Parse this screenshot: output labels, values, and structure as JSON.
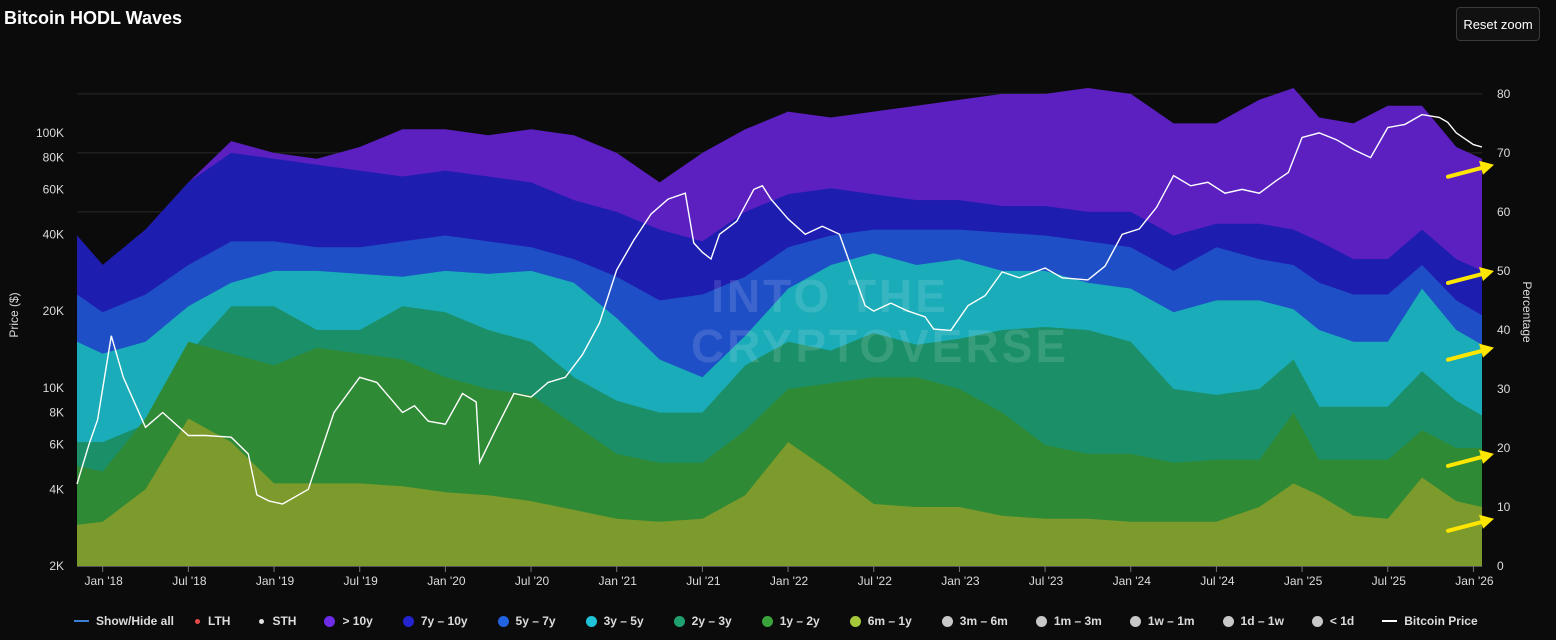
{
  "header": {
    "title": "Bitcoin HODL Waves",
    "reset_label": "Reset zoom"
  },
  "watermark": {
    "line1": "INTO THE",
    "line2": "CRYPTOVERSE"
  },
  "legend": [
    {
      "label": "Show/Hide all",
      "symbol": "line",
      "color": "#3a7fd6"
    },
    {
      "label": "LTH",
      "symbol": "small-dot",
      "color": "#e64a4a"
    },
    {
      "label": "STH",
      "symbol": "small-dot",
      "color": "#e0e0e0"
    },
    {
      "label": "> 10y",
      "symbol": "dot",
      "color": "#6c2ce8"
    },
    {
      "label": "7y – 10y",
      "symbol": "dot",
      "color": "#2323d0"
    },
    {
      "label": "5y – 7y",
      "symbol": "dot",
      "color": "#2263e0"
    },
    {
      "label": "3y – 5y",
      "symbol": "dot",
      "color": "#20c4d8"
    },
    {
      "label": "2y – 3y",
      "symbol": "dot",
      "color": "#1fa06e"
    },
    {
      "label": "1y – 2y",
      "symbol": "dot",
      "color": "#3aa33c"
    },
    {
      "label": "6m – 1y",
      "symbol": "dot",
      "color": "#a5c93a"
    },
    {
      "label": "3m – 6m",
      "symbol": "dot",
      "color": "#c8c8c8"
    },
    {
      "label": "1m – 3m",
      "symbol": "dot",
      "color": "#c8c8c8"
    },
    {
      "label": "1w – 1m",
      "symbol": "dot",
      "color": "#c8c8c8"
    },
    {
      "label": "1d – 1w",
      "symbol": "dot",
      "color": "#c8c8c8"
    },
    {
      "label": "< 1d",
      "symbol": "dot",
      "color": "#c8c8c8"
    },
    {
      "label": "Bitcoin Price",
      "symbol": "line",
      "color": "#ffffff"
    }
  ],
  "chart_data": {
    "type": "area",
    "title": "Bitcoin HODL Waves",
    "ylabel_left": "Price ($)",
    "ylabel_right": "Percentage",
    "y_left_scale": "log",
    "y_left_range": [
      2000,
      150000
    ],
    "y_left_ticks": [
      {
        "v": 2000,
        "label": "2K"
      },
      {
        "v": 4000,
        "label": "4K"
      },
      {
        "v": 6000,
        "label": "6K"
      },
      {
        "v": 8000,
        "label": "8K"
      },
      {
        "v": 10000,
        "label": "10K"
      },
      {
        "v": 20000,
        "label": "20K"
      },
      {
        "v": 40000,
        "label": "40K"
      },
      {
        "v": 60000,
        "label": "60K"
      },
      {
        "v": 80000,
        "label": "80K"
      },
      {
        "v": 100000,
        "label": "100K"
      }
    ],
    "y_right_range": [
      0,
      81
    ],
    "y_right_ticks": [
      0,
      10,
      20,
      30,
      40,
      50,
      60,
      70,
      80
    ],
    "x_range": [
      2017.85,
      2026.05
    ],
    "x_ticks": [
      {
        "t": 2018.0,
        "label": "Jan '18"
      },
      {
        "t": 2018.5,
        "label": "Jul '18"
      },
      {
        "t": 2019.0,
        "label": "Jan '19"
      },
      {
        "t": 2019.5,
        "label": "Jul '19"
      },
      {
        "t": 2020.0,
        "label": "Jan '20"
      },
      {
        "t": 2020.5,
        "label": "Jul '20"
      },
      {
        "t": 2021.0,
        "label": "Jan '21"
      },
      {
        "t": 2021.5,
        "label": "Jul '21"
      },
      {
        "t": 2022.0,
        "label": "Jan '22"
      },
      {
        "t": 2022.5,
        "label": "Jul '22"
      },
      {
        "t": 2023.0,
        "label": "Jan '23"
      },
      {
        "t": 2023.5,
        "label": "Jul '23"
      },
      {
        "t": 2024.0,
        "label": "Jan '24"
      },
      {
        "t": 2024.5,
        "label": "Jul '24"
      },
      {
        "t": 2025.0,
        "label": "Jan '25"
      },
      {
        "t": 2025.5,
        "label": "Jul '25"
      },
      {
        "t": 2026.0,
        "label": "Jan '26"
      }
    ],
    "t": [
      2017.85,
      2018.0,
      2018.25,
      2018.5,
      2018.75,
      2019.0,
      2019.25,
      2019.5,
      2019.75,
      2020.0,
      2020.25,
      2020.5,
      2020.75,
      2021.0,
      2021.25,
      2021.5,
      2021.75,
      2022.0,
      2022.25,
      2022.5,
      2022.75,
      2023.0,
      2023.25,
      2023.5,
      2023.75,
      2024.0,
      2024.25,
      2024.5,
      2024.75,
      2024.95,
      2025.1,
      2025.3,
      2025.5,
      2025.7,
      2025.9,
      2026.05
    ],
    "series": [
      {
        "name": "6m – 1y",
        "color": "#7d9a2c",
        "cumulative_top": [
          7,
          7.5,
          13,
          25,
          21,
          14,
          14,
          14,
          13.5,
          12.5,
          12,
          11,
          9.5,
          8,
          7.5,
          8,
          12,
          21,
          16,
          10.5,
          10,
          10,
          8.5,
          8,
          8,
          7.5,
          7.5,
          7.5,
          10,
          14,
          12,
          8.5,
          8,
          15,
          11,
          10
        ]
      },
      {
        "name": "1y – 2y",
        "color": "#2f8a35",
        "cumulative_top": [
          17,
          16,
          25,
          38,
          36,
          34,
          37,
          36,
          35,
          32,
          30,
          29,
          24,
          19,
          17.5,
          17.5,
          23,
          30,
          31,
          32,
          32,
          30,
          26,
          20.5,
          19,
          19,
          17.5,
          18,
          18,
          26,
          18,
          18,
          18,
          23,
          20,
          20
        ]
      },
      {
        "name": "2y – 3y",
        "color": "#1b8f68",
        "cumulative_top": [
          21,
          21,
          24,
          36,
          44,
          44,
          40,
          40,
          44,
          43,
          40,
          38,
          32,
          28,
          26,
          26,
          34,
          38,
          36.5,
          39.5,
          37.5,
          38.5,
          40,
          40.5,
          40,
          38,
          30,
          29,
          30,
          35,
          27,
          27,
          27,
          33,
          28,
          25.5
        ]
      },
      {
        "name": "3y – 5y",
        "color": "#1aacb8",
        "cumulative_top": [
          38,
          36,
          38,
          44,
          48,
          50,
          50,
          49.5,
          49,
          50,
          49.5,
          50,
          48,
          42,
          35,
          32,
          39,
          47,
          51,
          53,
          51,
          52,
          50,
          50,
          48,
          47,
          43,
          45,
          45,
          43.5,
          40,
          38,
          38,
          47,
          40,
          37.5
        ]
      },
      {
        "name": "5y – 7y",
        "color": "#1f4fc6",
        "cumulative_top": [
          46,
          43,
          46,
          51,
          55,
          55,
          54,
          54,
          55,
          56,
          55,
          54,
          52,
          49,
          45,
          46,
          49,
          54,
          56,
          57,
          57,
          57,
          56.5,
          56,
          55,
          54,
          50,
          54,
          52,
          51,
          48,
          46,
          46,
          51,
          45,
          42.5
        ]
      },
      {
        "name": "7y – 10y",
        "color": "#1d1db0",
        "cumulative_top": [
          56,
          51,
          57,
          65,
          70,
          69,
          68,
          67,
          66,
          67,
          66,
          65,
          62,
          60,
          57,
          55,
          60,
          63,
          64,
          63,
          62,
          62,
          61,
          61,
          60,
          60,
          56,
          58,
          58,
          57,
          55,
          52,
          52,
          57,
          52,
          50
        ]
      },
      {
        "name": "> 10y",
        "color": "#5c1fc0",
        "cumulative_top": [
          56,
          51,
          57,
          65,
          72,
          70,
          69,
          71,
          74,
          74,
          73,
          74,
          73,
          70,
          65,
          70,
          74,
          77,
          76,
          77,
          78,
          79,
          80,
          80,
          81,
          80,
          75,
          75,
          79,
          81,
          76,
          75,
          78,
          78,
          71,
          69
        ]
      }
    ],
    "price_series": {
      "name": "Bitcoin Price",
      "color": "#ffffff",
      "t": [
        2017.85,
        2017.92,
        2017.97,
        2018.05,
        2018.12,
        2018.25,
        2018.35,
        2018.5,
        2018.6,
        2018.75,
        2018.85,
        2018.9,
        2018.97,
        2019.05,
        2019.2,
        2019.35,
        2019.5,
        2019.6,
        2019.75,
        2019.82,
        2019.9,
        2020.0,
        2020.1,
        2020.18,
        2020.2,
        2020.3,
        2020.4,
        2020.5,
        2020.6,
        2020.7,
        2020.8,
        2020.9,
        2021.0,
        2021.1,
        2021.2,
        2021.3,
        2021.4,
        2021.45,
        2021.5,
        2021.55,
        2021.6,
        2021.7,
        2021.8,
        2021.85,
        2021.9,
        2022.0,
        2022.1,
        2022.2,
        2022.3,
        2022.45,
        2022.5,
        2022.6,
        2022.7,
        2022.8,
        2022.85,
        2022.95,
        2023.05,
        2023.15,
        2023.25,
        2023.35,
        2023.5,
        2023.6,
        2023.75,
        2023.85,
        2023.95,
        2024.05,
        2024.15,
        2024.25,
        2024.35,
        2024.45,
        2024.55,
        2024.65,
        2024.75,
        2024.85,
        2024.92,
        2025.0,
        2025.1,
        2025.2,
        2025.3,
        2025.4,
        2025.5,
        2025.6,
        2025.7,
        2025.8,
        2025.85,
        2025.9,
        2026.0,
        2026.05
      ],
      "values": [
        4200,
        6000,
        7500,
        16000,
        11000,
        7000,
        8000,
        6500,
        6500,
        6400,
        5500,
        3800,
        3600,
        3500,
        4000,
        8000,
        11000,
        10500,
        8000,
        8500,
        7400,
        7200,
        9500,
        8800,
        5100,
        7000,
        9500,
        9200,
        10500,
        11000,
        13500,
        18000,
        29000,
        38000,
        48000,
        55000,
        58000,
        37000,
        34000,
        32000,
        40000,
        45000,
        60000,
        62000,
        55000,
        46000,
        40000,
        43000,
        40000,
        21000,
        20000,
        21500,
        20000,
        19000,
        17000,
        16800,
        21000,
        23000,
        28500,
        27000,
        29500,
        27000,
        26500,
        30000,
        40000,
        42000,
        51000,
        68000,
        62000,
        64000,
        58000,
        60000,
        58000,
        65000,
        70000,
        96000,
        100000,
        94000,
        86000,
        80000,
        105000,
        108000,
        118000,
        115000,
        110000,
        100000,
        90000,
        88000
      ]
    },
    "annotations": [
      {
        "type": "arrow",
        "color": "#ffe600",
        "target_pct": 68
      },
      {
        "type": "arrow",
        "color": "#ffe600",
        "target_pct": 50
      },
      {
        "type": "arrow",
        "color": "#ffe600",
        "target_pct": 37
      },
      {
        "type": "arrow",
        "color": "#ffe600",
        "target_pct": 19
      },
      {
        "type": "arrow",
        "color": "#ffe600",
        "target_pct": 8
      }
    ]
  }
}
